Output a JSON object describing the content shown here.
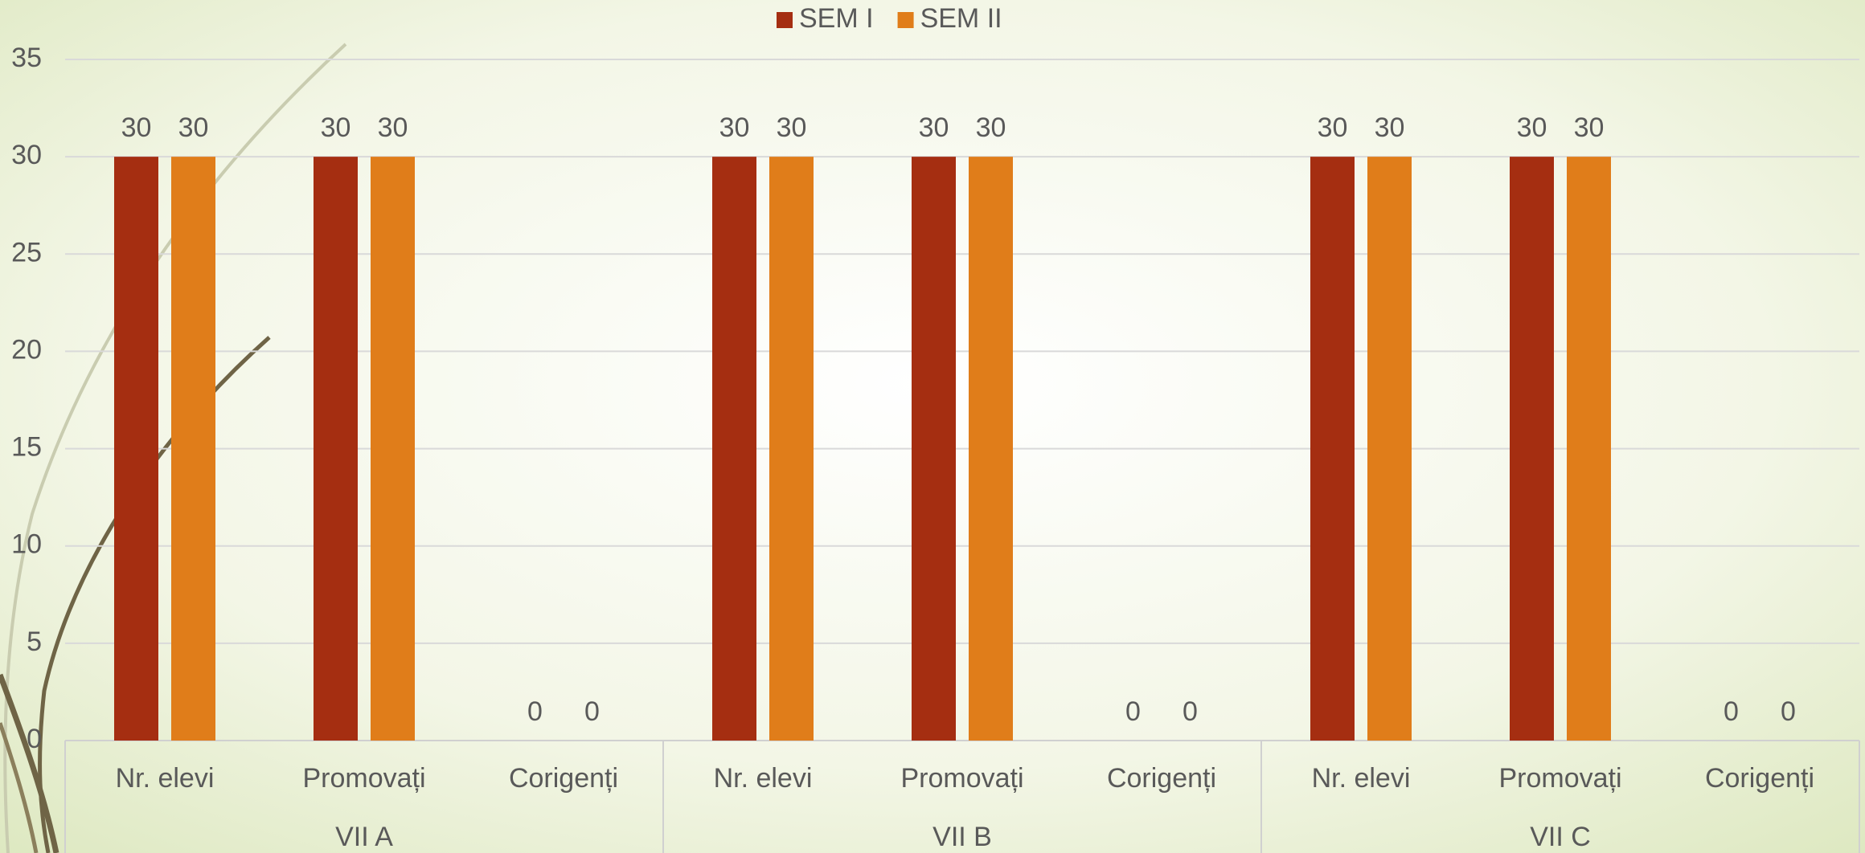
{
  "chart_data": {
    "type": "bar",
    "categories": [
      "Nr. elevi",
      "Promovați",
      "Corigenți",
      "Nr. elevi",
      "Promovați",
      "Corigenți",
      "Nr. elevi",
      "Promovați",
      "Corigenți"
    ],
    "groups": [
      "VII A",
      "VII B",
      "VII C"
    ],
    "series": [
      {
        "name": "SEM I",
        "color": "#a52e11",
        "values": [
          30,
          30,
          0,
          30,
          30,
          0,
          30,
          30,
          0
        ]
      },
      {
        "name": "SEM II",
        "color": "#e07d1a",
        "values": [
          30,
          30,
          0,
          30,
          30,
          0,
          30,
          30,
          0
        ]
      }
    ],
    "ylim": [
      0,
      35
    ],
    "yticks": [
      0,
      5,
      10,
      15,
      20,
      25,
      30,
      35
    ],
    "grid": true,
    "legend": "top"
  }
}
